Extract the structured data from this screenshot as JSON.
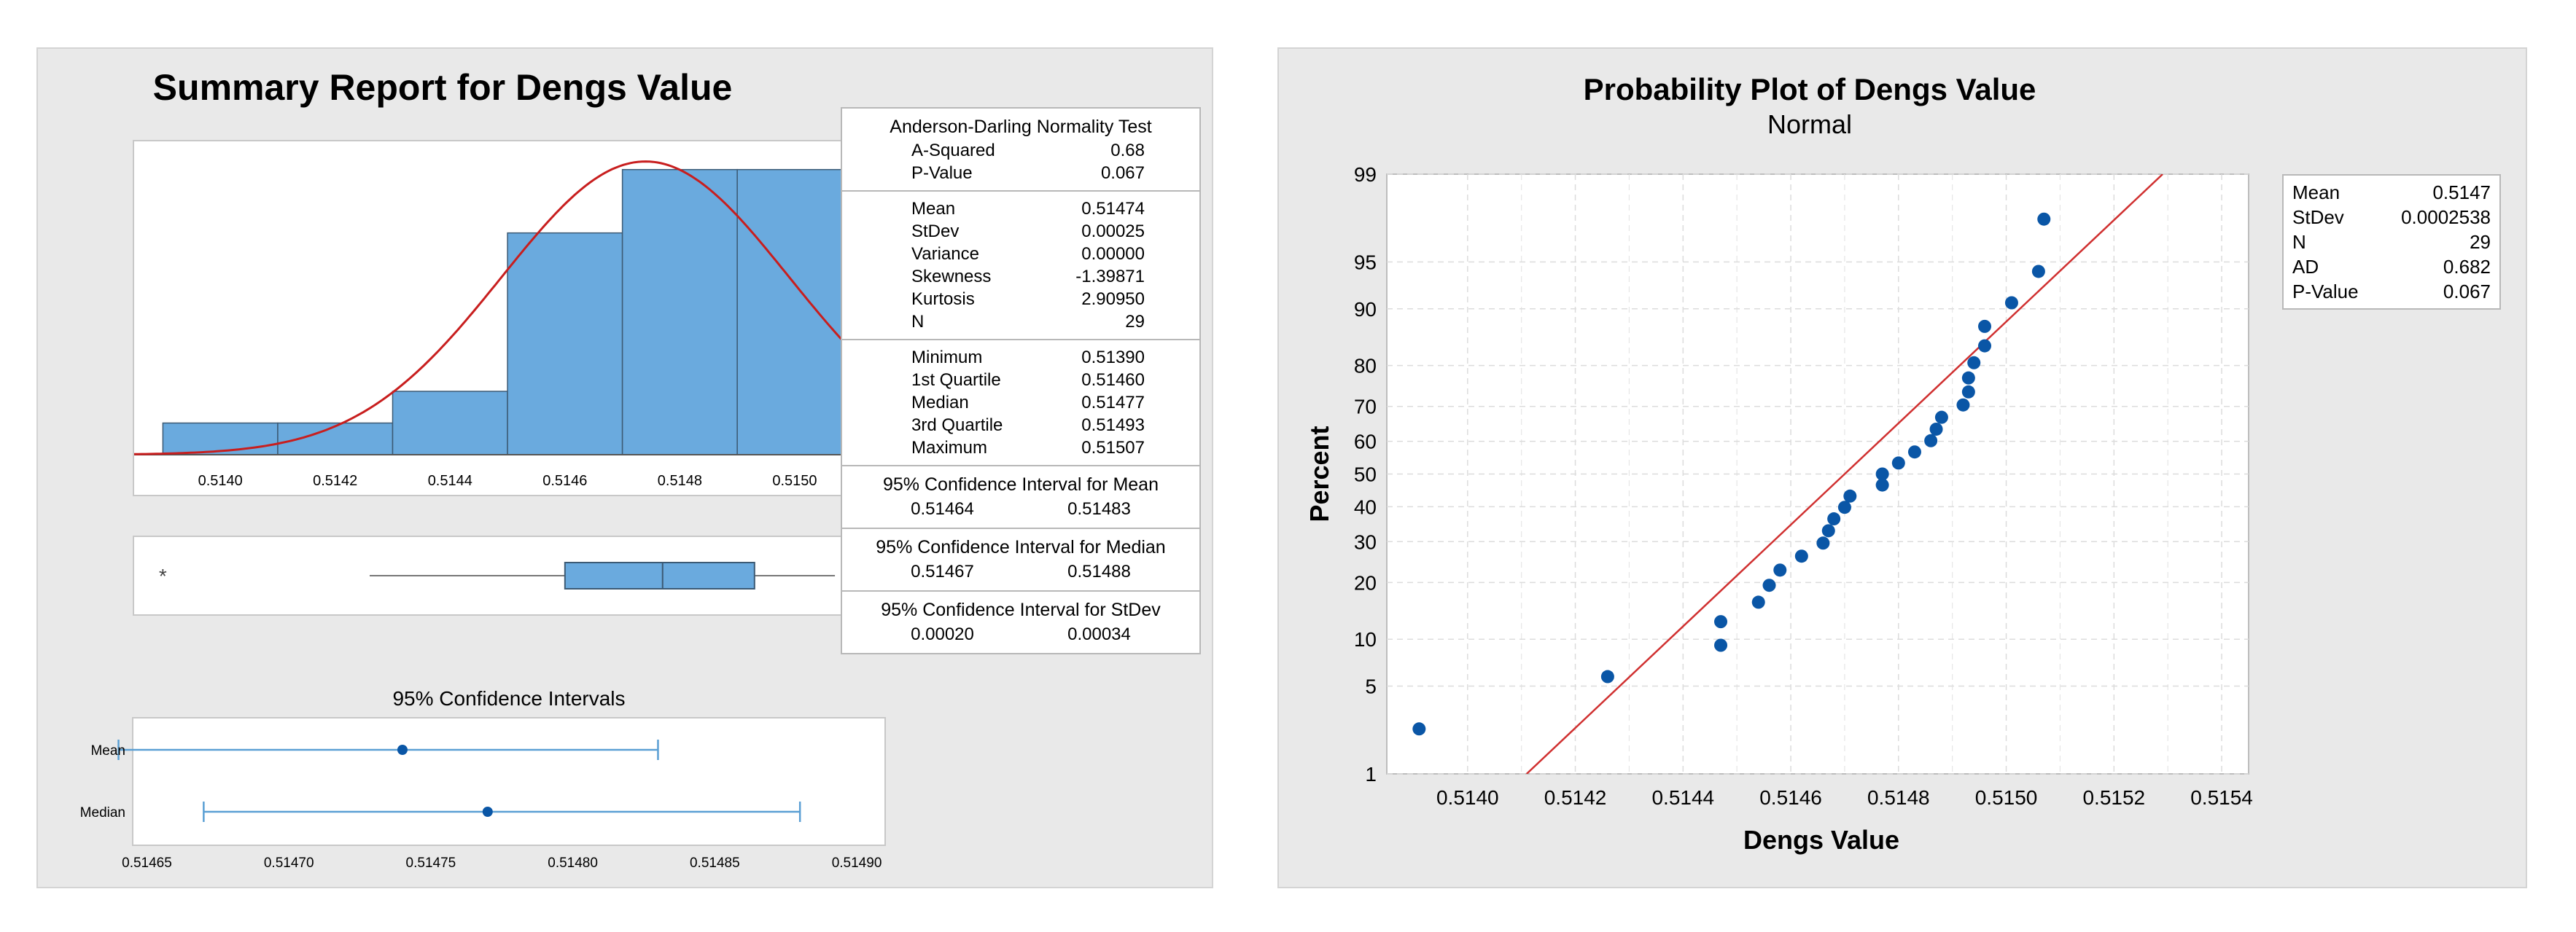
{
  "summary": {
    "title": "Summary Report for Dengs Value",
    "histogram": {
      "bins": [
        {
          "start": 0.5139,
          "end": 0.5141,
          "count": 1
        },
        {
          "start": 0.5141,
          "end": 0.5143,
          "count": 1
        },
        {
          "start": 0.5143,
          "end": 0.5145,
          "count": 2
        },
        {
          "start": 0.5145,
          "end": 0.5147,
          "count": 7
        },
        {
          "start": 0.5147,
          "end": 0.5149,
          "count": 9
        },
        {
          "start": 0.5149,
          "end": 0.5151,
          "count": 9
        }
      ],
      "ticks": [
        "0.5140",
        "0.5142",
        "0.5144",
        "0.5146",
        "0.5148",
        "0.5150"
      ],
      "tick_values": [
        0.514,
        0.5142,
        0.5144,
        0.5146,
        0.5148,
        0.515
      ],
      "xlim": [
        0.51385,
        0.51516
      ],
      "ylim": [
        0,
        9.2
      ],
      "normal_mean": 0.51474,
      "normal_sd": 0.00025,
      "bar_color": "#6aaade",
      "curve_color": "#c81e1e"
    },
    "boxplot": {
      "outlier": 0.5139,
      "whisker_low": 0.51426,
      "q1": 0.5146,
      "median": 0.51477,
      "q3": 0.51493,
      "whisker_high": 0.51507,
      "outlier_symbol": "*"
    },
    "ci": {
      "title": "95% Confidence Intervals",
      "xlim": [
        0.514645,
        0.51491
      ],
      "ticks": [
        "0.51465",
        "0.51470",
        "0.51475",
        "0.51480",
        "0.51485",
        "0.51490"
      ],
      "tick_values": [
        0.51465,
        0.5147,
        0.51475,
        0.5148,
        0.51485,
        0.5149
      ],
      "rows": [
        {
          "label": "Mean",
          "low": 0.51464,
          "estimate": 0.51474,
          "high": 0.51483
        },
        {
          "label": "Median",
          "low": 0.51467,
          "estimate": 0.51477,
          "high": 0.51488
        }
      ]
    },
    "table": {
      "ad_title": "Anderson-Darling Normality Test",
      "ad_rows": [
        {
          "k": "A-Squared",
          "v": "0.68"
        },
        {
          "k": "P-Value",
          "v": "0.067"
        }
      ],
      "moment_rows": [
        {
          "k": "Mean",
          "v": "0.51474"
        },
        {
          "k": "StDev",
          "v": "0.00025"
        },
        {
          "k": "Variance",
          "v": "0.00000"
        },
        {
          "k": "Skewness",
          "v": "-1.39871"
        },
        {
          "k": "Kurtosis",
          "v": "2.90950"
        },
        {
          "k": "N",
          "v": "29"
        }
      ],
      "quantile_rows": [
        {
          "k": "Minimum",
          "v": "0.51390"
        },
        {
          "k": "1st Quartile",
          "v": "0.51460"
        },
        {
          "k": "Median",
          "v": "0.51477"
        },
        {
          "k": "3rd Quartile",
          "v": "0.51493"
        },
        {
          "k": "Maximum",
          "v": "0.51507"
        }
      ],
      "ci_mean_title": "95% Confidence Interval for Mean",
      "ci_mean": [
        "0.51464",
        "0.51483"
      ],
      "ci_median_title": "95% Confidence Interval for Median",
      "ci_median": [
        "0.51467",
        "0.51488"
      ],
      "ci_stdev_title": "95% Confidence Interval for StDev",
      "ci_stdev": [
        "0.00020",
        "0.00034"
      ]
    }
  },
  "probability": {
    "title": "Probability Plot of Dengs Value",
    "subtitle": "Normal",
    "xlabel": "Dengs Value",
    "ylabel": "Percent",
    "xlim": [
      0.51385,
      0.51545
    ],
    "x_ticks": [
      "0.5140",
      "0.5142",
      "0.5144",
      "0.5146",
      "0.5148",
      "0.5150",
      "0.5152",
      "0.5154"
    ],
    "x_tick_values": [
      0.514,
      0.5142,
      0.5144,
      0.5146,
      0.5148,
      0.515,
      0.5152,
      0.5154
    ],
    "y_ticks": [
      "1",
      "5",
      "10",
      "20",
      "30",
      "40",
      "50",
      "60",
      "70",
      "80",
      "90",
      "95",
      "99"
    ],
    "y_tick_values": [
      1,
      5,
      10,
      20,
      30,
      40,
      50,
      60,
      70,
      80,
      90,
      95,
      99
    ],
    "point_color": "#0a56a6",
    "line_color": "#d03030",
    "fit_mean": 0.5147,
    "fit_sd": 0.0002538,
    "points": [
      {
        "x": 0.51391,
        "p": 2.4
      },
      {
        "x": 0.51426,
        "p": 5.8
      },
      {
        "x": 0.51447,
        "p": 9.2
      },
      {
        "x": 0.51447,
        "p": 12.6
      },
      {
        "x": 0.51454,
        "p": 16.0
      },
      {
        "x": 0.51456,
        "p": 19.4
      },
      {
        "x": 0.51458,
        "p": 22.8
      },
      {
        "x": 0.51462,
        "p": 26.2
      },
      {
        "x": 0.51466,
        "p": 29.6
      },
      {
        "x": 0.51467,
        "p": 33.0
      },
      {
        "x": 0.51468,
        "p": 36.4
      },
      {
        "x": 0.5147,
        "p": 39.8
      },
      {
        "x": 0.51471,
        "p": 43.2
      },
      {
        "x": 0.51477,
        "p": 46.6
      },
      {
        "x": 0.51477,
        "p": 50.0
      },
      {
        "x": 0.5148,
        "p": 53.4
      },
      {
        "x": 0.51483,
        "p": 56.8
      },
      {
        "x": 0.51486,
        "p": 60.2
      },
      {
        "x": 0.51487,
        "p": 63.6
      },
      {
        "x": 0.51488,
        "p": 67.0
      },
      {
        "x": 0.51492,
        "p": 70.4
      },
      {
        "x": 0.51493,
        "p": 73.8
      },
      {
        "x": 0.51493,
        "p": 77.2
      },
      {
        "x": 0.51494,
        "p": 80.6
      },
      {
        "x": 0.51496,
        "p": 84.0
      },
      {
        "x": 0.51496,
        "p": 87.4
      },
      {
        "x": 0.51501,
        "p": 90.8
      },
      {
        "x": 0.51506,
        "p": 94.2
      },
      {
        "x": 0.51507,
        "p": 97.6
      }
    ],
    "stats": [
      {
        "k": "Mean",
        "v": "0.5147"
      },
      {
        "k": "StDev",
        "v": "0.0002538"
      },
      {
        "k": "N",
        "v": "29"
      },
      {
        "k": "AD",
        "v": "0.682"
      },
      {
        "k": "P-Value",
        "v": "0.067"
      }
    ]
  },
  "chart_data": [
    {
      "type": "bar",
      "title": "Summary Report for Dengs Value",
      "categories": [
        "0.5139-0.5141",
        "0.5141-0.5143",
        "0.5143-0.5145",
        "0.5145-0.5147",
        "0.5147-0.5149",
        "0.5149-0.5151"
      ],
      "values": [
        1,
        1,
        2,
        7,
        9,
        9
      ],
      "xlabel": "",
      "ylabel": ""
    },
    {
      "type": "scatter",
      "title": "Probability Plot of Dengs Value",
      "xlabel": "Dengs Value",
      "ylabel": "Percent",
      "xlim": [
        0.51385,
        0.51545
      ],
      "ylim": [
        1,
        99
      ],
      "grid": true
    }
  ]
}
